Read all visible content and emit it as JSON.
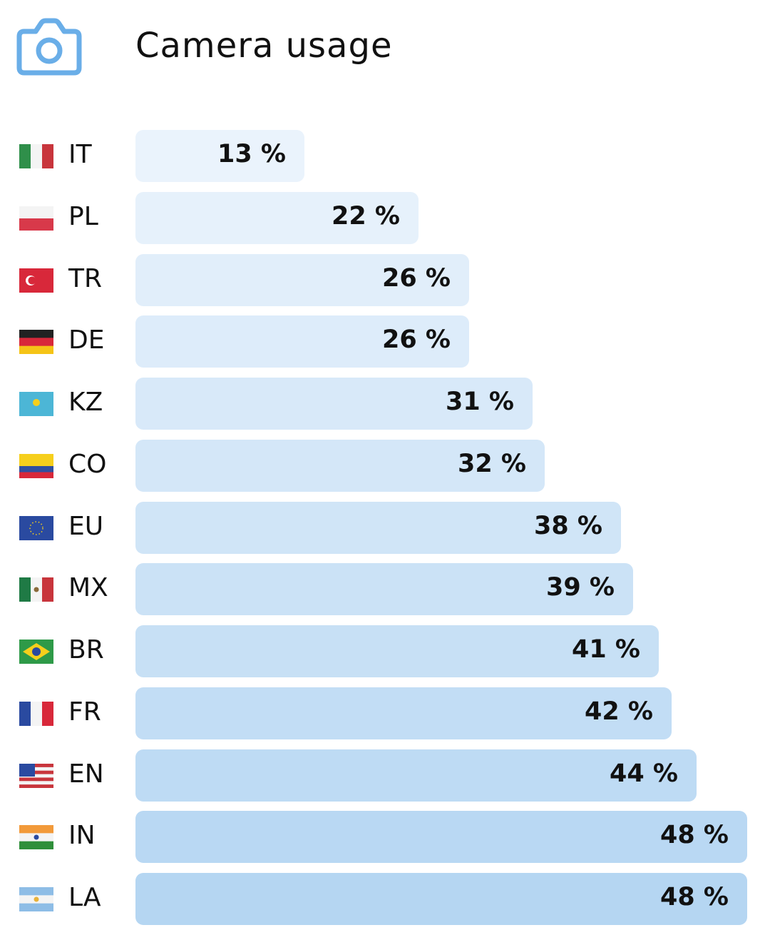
{
  "header": {
    "title": "Camera usage",
    "icon": "camera-icon",
    "icon_color": "#6aaee8"
  },
  "chart_data": {
    "type": "bar",
    "orientation": "horizontal",
    "title": "Camera usage",
    "unit": "%",
    "categories": [
      "IT",
      "PL",
      "TR",
      "DE",
      "KZ",
      "CO",
      "EU",
      "MX",
      "BR",
      "FR",
      "EN",
      "IN",
      "LA"
    ],
    "values": [
      13,
      22,
      26,
      26,
      31,
      32,
      38,
      39,
      41,
      42,
      44,
      48,
      48
    ],
    "labels": [
      "13 %",
      "22 %",
      "26 %",
      "26 %",
      "31 %",
      "32 %",
      "38 %",
      "39 %",
      "41 %",
      "42 %",
      "44 %",
      "48 %",
      "48 %"
    ],
    "color_start": "#eaf3fc",
    "color_end": "#b5d6f2"
  },
  "flags": {
    "IT": {
      "dir": "v",
      "c": [
        "#2f8f4a",
        "#f4f4f4",
        "#c8353c"
      ]
    },
    "PL": {
      "dir": "h",
      "c": [
        "#f4f4f4",
        "#d8394a"
      ]
    },
    "TR": {
      "dir": "h",
      "c": [
        "#d8283a"
      ]
    },
    "DE": {
      "dir": "h",
      "c": [
        "#222",
        "#d8283a",
        "#f5c417"
      ]
    },
    "KZ": {
      "dir": "h",
      "c": [
        "#4cb6d6"
      ]
    },
    "CO": {
      "dir": "h",
      "c": [
        "#f6cf1c",
        "#f6cf1c",
        "#2f4fa0",
        "#d8283a"
      ]
    },
    "EU": {
      "dir": "h",
      "c": [
        "#2a4aa0"
      ]
    },
    "MX": {
      "dir": "v",
      "c": [
        "#1f7a45",
        "#f4f4f4",
        "#c8353c"
      ]
    },
    "BR": {
      "dir": "h",
      "c": [
        "#2e9a48"
      ]
    },
    "FR": {
      "dir": "v",
      "c": [
        "#2a4aa0",
        "#f4f4f4",
        "#d8283a"
      ]
    },
    "EN": {
      "dir": "h",
      "c": [
        "#c8353c",
        "#f4f4f4",
        "#c8353c",
        "#f4f4f4",
        "#c8353c",
        "#f4f4f4",
        "#c8353c"
      ]
    },
    "IN": {
      "dir": "h",
      "c": [
        "#f29a3a",
        "#f4f4f4",
        "#2f8f3a"
      ]
    },
    "LA": {
      "dir": "h",
      "c": [
        "#8ebde6",
        "#f4f4f4",
        "#8ebde6"
      ]
    }
  }
}
